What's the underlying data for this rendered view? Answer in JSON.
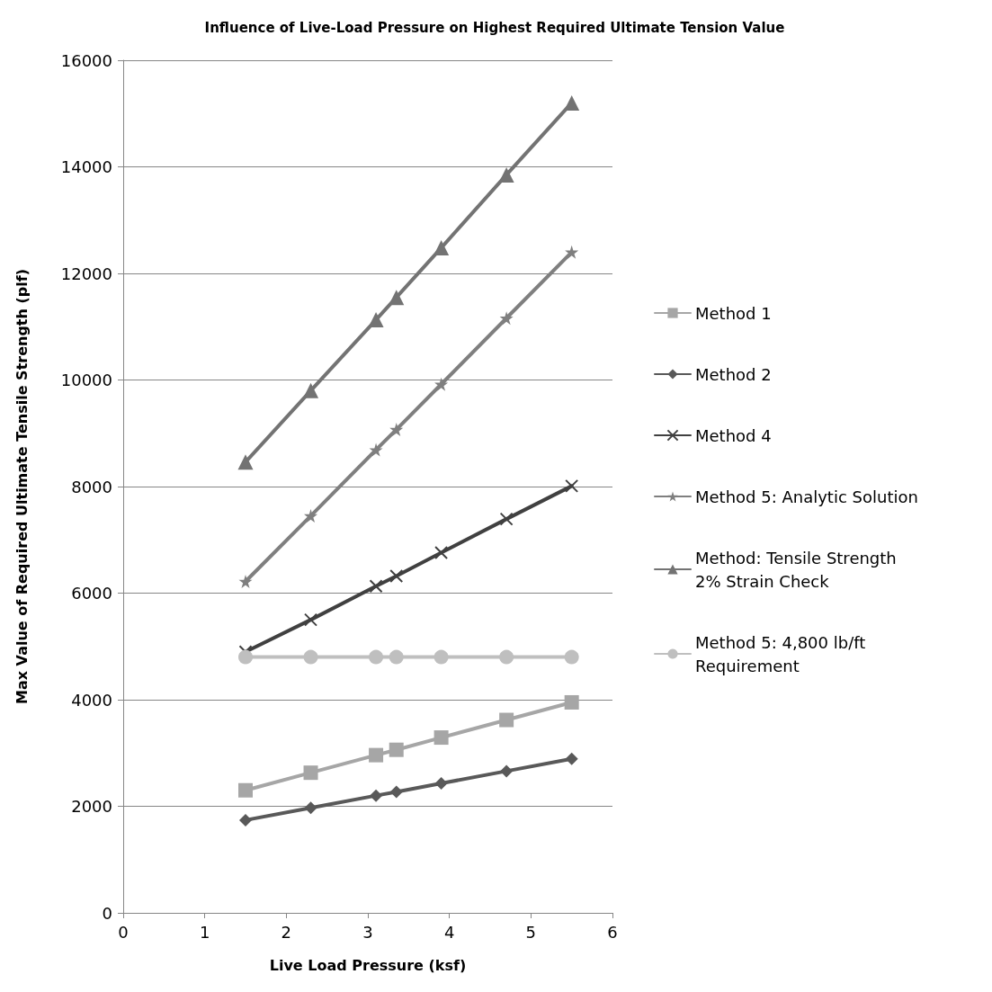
{
  "chart_data": {
    "type": "line",
    "title": "Influence of Live-Load Pressure on Highest Required Ultimate Tension Value",
    "xlabel": "Live Load Pressure (ksf)",
    "ylabel": "Max Value of Required Ultimate Tensile Strength (plf)",
    "x": [
      1.5,
      2.3,
      3.1,
      3.35,
      3.9,
      4.7,
      5.5
    ],
    "series": [
      {
        "name": "Method 1",
        "color": "#a6a6a6",
        "marker": "square",
        "values": [
          2300,
          2630,
          2960,
          3060,
          3290,
          3620,
          3950
        ]
      },
      {
        "name": "Method 2",
        "color": "#595959",
        "marker": "diamond",
        "values": [
          1740,
          1970,
          2200,
          2270,
          2430,
          2660,
          2890
        ]
      },
      {
        "name": "Method 4",
        "color": "#404040",
        "marker": "cross",
        "values": [
          4900,
          5500,
          6130,
          6320,
          6760,
          7390,
          8010
        ]
      },
      {
        "name": "Method 5: Analytic Solution",
        "color": "#7f7f7f",
        "marker": "star",
        "values": [
          6220,
          7450,
          8690,
          9070,
          9920,
          11160,
          12400
        ]
      },
      {
        "name": "Method: Tensile Strength 2% Strain Check",
        "color": "#737373",
        "marker": "triangle",
        "values": [
          8460,
          9800,
          11130,
          11550,
          12480,
          13850,
          15200
        ]
      },
      {
        "name": "Method 5: 4,800 lb/ft Requirement",
        "color": "#bfbfbf",
        "marker": "circle",
        "values": [
          4800,
          4800,
          4800,
          4800,
          4800,
          4800,
          4800
        ]
      }
    ],
    "xlim": [
      0,
      6
    ],
    "xticks": [
      0,
      1,
      2,
      3,
      4,
      5,
      6
    ],
    "ylim": [
      0,
      16000
    ],
    "yticks": [
      0,
      2000,
      4000,
      6000,
      8000,
      10000,
      12000,
      14000,
      16000
    ],
    "grid": "y",
    "legend": "right",
    "line_style": "solid"
  }
}
